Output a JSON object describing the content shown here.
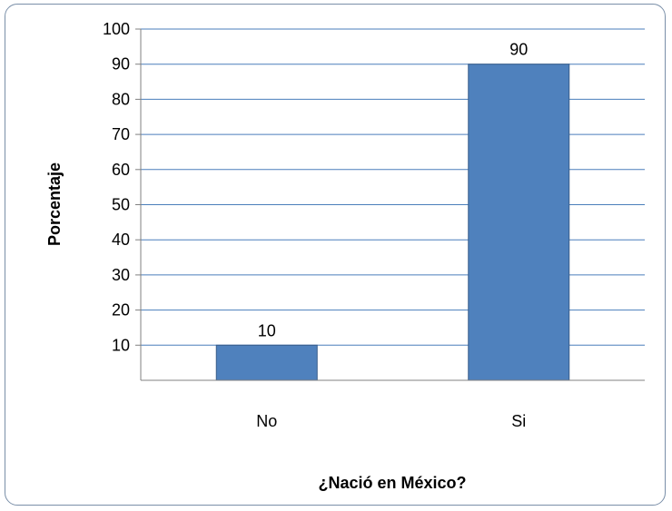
{
  "chart_data": {
    "type": "bar",
    "categories": [
      "No",
      "Si"
    ],
    "values": [
      10,
      90
    ],
    "data_labels": [
      "10",
      "90"
    ],
    "title": "",
    "xlabel": "¿Nació en México?",
    "ylabel": "Porcentaje",
    "ylim": [
      0,
      100
    ],
    "yticks": [
      10,
      20,
      30,
      40,
      50,
      60,
      70,
      80,
      90,
      100
    ],
    "grid": true,
    "legend": "none",
    "bar_color": "#4f81bd",
    "bar_border_color": "#385d8a",
    "gridline_color": "#4a7ebb"
  }
}
